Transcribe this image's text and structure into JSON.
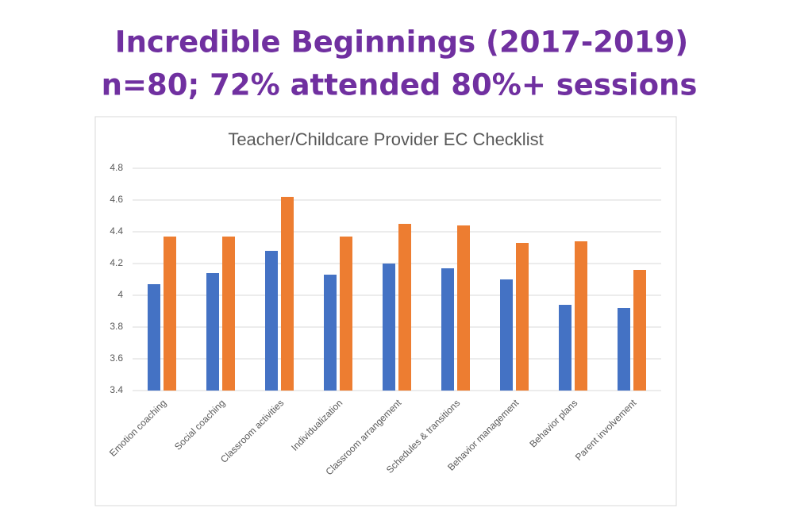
{
  "slide_title": [
    "Incredible Beginnings (2017-2019)",
    "n=80; 72% attended 80%+ sessions"
  ],
  "chart_data": {
    "type": "bar",
    "title": "Teacher/Childcare Provider EC Checklist",
    "categories": [
      "Emotion coaching",
      "Social coaching",
      "Classroom activities",
      "Individualization",
      "Classroom arrangement",
      "Schedules & transitions",
      "Behavior management",
      "Behavior plans",
      "Parent involvement"
    ],
    "series": [
      {
        "color": "#4472c4",
        "values": [
          4.07,
          4.14,
          4.28,
          4.13,
          4.2,
          4.17,
          4.1,
          3.94,
          3.92
        ]
      },
      {
        "color": "#ed7d31",
        "values": [
          4.37,
          4.37,
          4.62,
          4.37,
          4.45,
          4.44,
          4.33,
          4.34,
          4.16
        ]
      }
    ],
    "ylim": [
      3.4,
      4.8
    ],
    "yticks": [
      3.4,
      3.6,
      3.8,
      4,
      4.2,
      4.4,
      4.6,
      4.8
    ],
    "grid": true
  }
}
